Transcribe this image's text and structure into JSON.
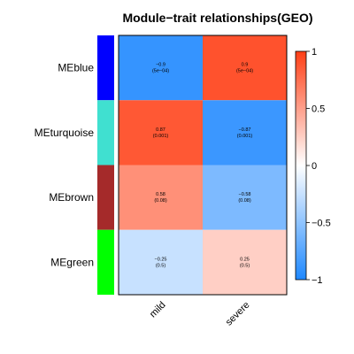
{
  "chart_data": {
    "type": "heatmap",
    "title": "Module−trait relationships(GEO)",
    "rows": [
      "MEblue",
      "MEturquoise",
      "MEbrown",
      "MEgreen"
    ],
    "row_colors": [
      "#0000ff",
      "#40e0d0",
      "#a52a2a",
      "#00ff00"
    ],
    "columns": [
      "mild",
      "severe"
    ],
    "values": [
      [
        -0.9,
        0.9
      ],
      [
        0.87,
        -0.87
      ],
      [
        0.58,
        -0.58
      ],
      [
        -0.25,
        0.25
      ]
    ],
    "cell_text": [
      [
        [
          "−0.9",
          "(5e−04)"
        ],
        [
          "0.9",
          "(5e−04)"
        ]
      ],
      [
        [
          "0.87",
          "(0.001)"
        ],
        [
          "−0.87",
          "(0.001)"
        ]
      ],
      [
        [
          "0.58",
          "(0.08)"
        ],
        [
          "−0.58",
          "(0.08)"
        ]
      ],
      [
        [
          "−0.25",
          "(0.5)"
        ],
        [
          "0.25",
          "(0.5)"
        ]
      ]
    ],
    "color_scale": {
      "min": -1,
      "max": 1,
      "low_color": "#1e88ff",
      "mid_color": "#ffffff",
      "high_color": "#ff3f16"
    },
    "legend_ticks": [
      {
        "value": 1,
        "label": "1"
      },
      {
        "value": 0.5,
        "label": "0.5"
      },
      {
        "value": 0,
        "label": "0"
      },
      {
        "value": -0.5,
        "label": "−0.5"
      },
      {
        "value": -1,
        "label": "−1"
      }
    ],
    "legend_placement": "right"
  }
}
